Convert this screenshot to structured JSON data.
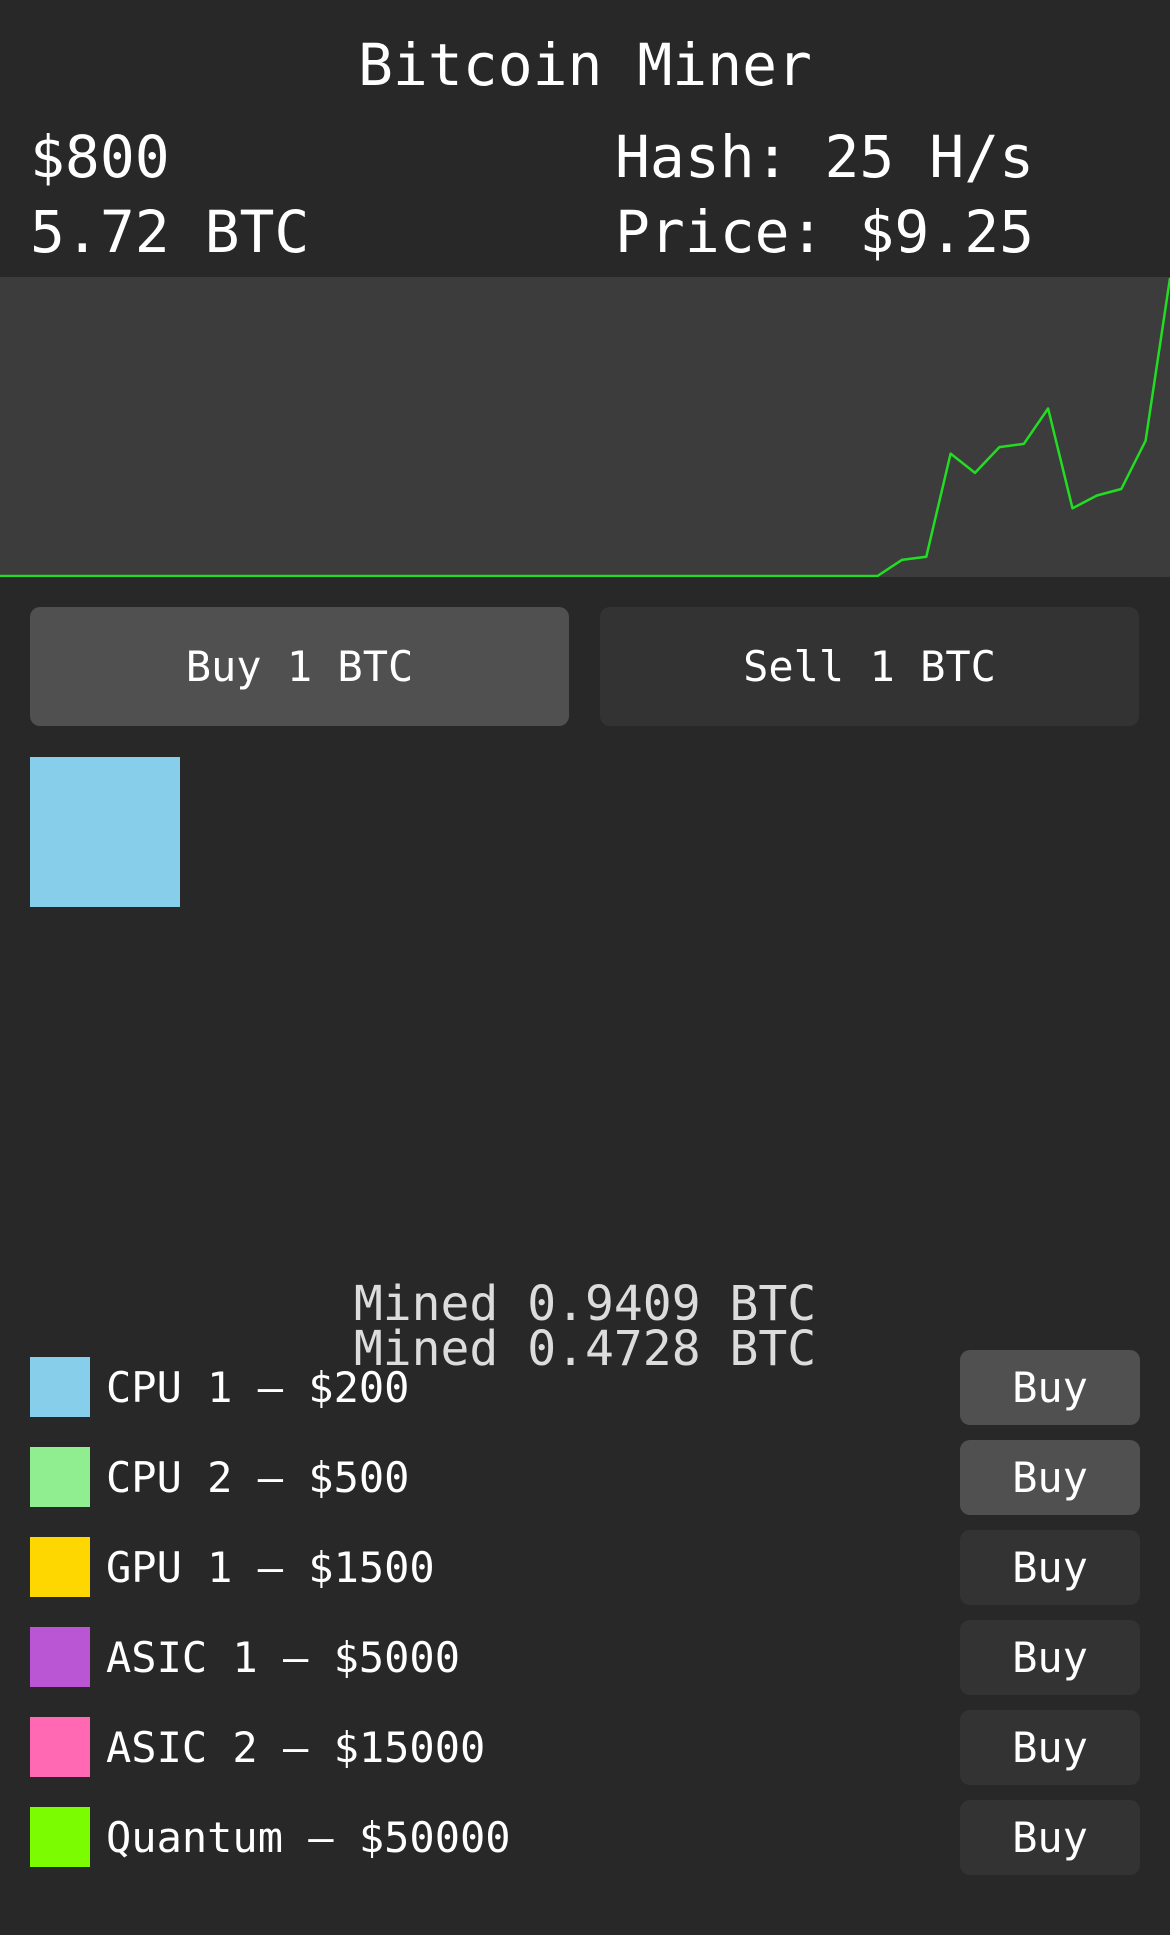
{
  "title": "Bitcoin Miner",
  "stats": {
    "money": "$800",
    "btc": "5.72 BTC",
    "hash": "Hash: 25 H/s",
    "price": "Price: $9.25"
  },
  "chart_data": {
    "type": "line",
    "line_color": "#22dd22",
    "background": "#3c3c3c",
    "values": [
      0,
      0,
      0,
      0,
      0,
      0,
      0,
      0,
      0,
      0,
      0,
      0,
      0,
      0,
      0,
      0,
      0,
      0,
      0,
      0,
      0,
      0,
      0,
      0,
      0,
      0,
      0,
      0,
      0,
      0,
      0,
      0,
      0,
      0,
      0,
      0,
      0,
      0.5,
      0.6,
      3.8,
      3.2,
      4.0,
      4.1,
      5.2,
      2.1,
      2.5,
      2.7,
      4.2,
      9.25
    ]
  },
  "trade": {
    "buy_label": "Buy 1 BTC",
    "sell_label": "Sell 1 BTC"
  },
  "owned_miners": [
    {
      "name": "CPU 1",
      "color": "#87ceeb"
    }
  ],
  "log": [
    "Mined 0.9409 BTC",
    "Mined 0.4728 BTC"
  ],
  "shop": [
    {
      "label": "CPU 1 — $200",
      "color": "#87ceeb",
      "button": "Buy",
      "affordable": true
    },
    {
      "label": "CPU 2 — $500",
      "color": "#90ee90",
      "button": "Buy",
      "affordable": true
    },
    {
      "label": "GPU 1 — $1500",
      "color": "#ffd700",
      "button": "Buy",
      "affordable": false
    },
    {
      "label": "ASIC 1 — $5000",
      "color": "#ba55d3",
      "button": "Buy",
      "affordable": false
    },
    {
      "label": "ASIC 2 — $15000",
      "color": "#ff69b4",
      "button": "Buy",
      "affordable": false
    },
    {
      "label": "Quantum — $50000",
      "color": "#7cfc00",
      "button": "Buy",
      "affordable": false
    }
  ]
}
